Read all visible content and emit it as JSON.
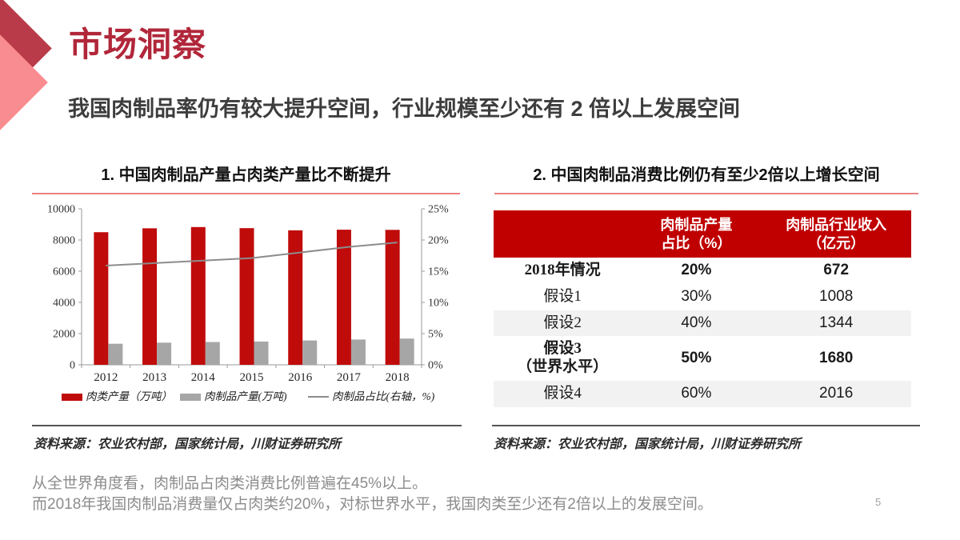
{
  "slide": {
    "title": "市场洞察",
    "subtitle": "我国肉制品率仍有较大提升空间，行业规模至少还有 2 倍以上发展空间",
    "page_number": "5"
  },
  "colors": {
    "accent_dark_red": "#b1273a",
    "bar_red": "#c00b0b",
    "bar_gray": "#a6a6a6",
    "line_gray": "#8c8c8c",
    "table_header_red": "#c00000",
    "shaded_row": "#f2f2f2",
    "rule_pink": "#ec8080"
  },
  "left_panel": {
    "heading": "1. 中国肉制品产量占肉类产量比不断提升",
    "source": "资料来源：农业农村部，国家统计局，川财证券研究所"
  },
  "right_panel": {
    "heading": "2. 中国肉制品消费比例仍有至少2倍以上增长空间",
    "source": "资料来源：农业农村部，国家统计局，川财证券研究所"
  },
  "chart_data": {
    "type": "bar+line combo",
    "categories": [
      "2012",
      "2013",
      "2014",
      "2015",
      "2016",
      "2017",
      "2018"
    ],
    "series": [
      {
        "name": "肉类产量（万吨）",
        "type": "bar",
        "axis": "left",
        "color": "#c00b0b",
        "values": [
          8500,
          8750,
          8830,
          8760,
          8620,
          8660,
          8650
        ]
      },
      {
        "name": "肉制品产量(万吨)",
        "type": "bar",
        "axis": "left",
        "color": "#a6a6a6",
        "values": [
          1350,
          1420,
          1460,
          1490,
          1560,
          1620,
          1680
        ]
      },
      {
        "name": "肉制品占比(右轴，%)",
        "type": "line",
        "axis": "right",
        "color": "#8c8c8c",
        "values": [
          15.9,
          16.3,
          16.7,
          17.1,
          18.0,
          18.9,
          19.6
        ]
      }
    ],
    "left_axis": {
      "min": 0,
      "max": 10000,
      "step": 2000,
      "labels": [
        "0",
        "2000",
        "4000",
        "6000",
        "8000",
        "10000"
      ]
    },
    "right_axis": {
      "min": 0,
      "max": 25,
      "step": 5,
      "labels": [
        "0%",
        "5%",
        "10%",
        "15%",
        "20%",
        "25%"
      ]
    },
    "grid": false,
    "legend_position": "bottom"
  },
  "table": {
    "headers": [
      "",
      "肉制品产量\n占比（%）",
      "肉制品行业收入\n（亿元）"
    ],
    "rows": [
      {
        "label": "2018年情况",
        "share": "20%",
        "revenue": "672",
        "bold": true,
        "shaded": false
      },
      {
        "label": "假设1",
        "share": "30%",
        "revenue": "1008",
        "bold": false,
        "shaded": false
      },
      {
        "label": "假设2",
        "share": "40%",
        "revenue": "1344",
        "bold": false,
        "shaded": true
      },
      {
        "label": "假设3\n（世界水平）",
        "share": "50%",
        "revenue": "1680",
        "bold": true,
        "shaded": false
      },
      {
        "label": "假设4",
        "share": "60%",
        "revenue": "2016",
        "bold": false,
        "shaded": true
      }
    ]
  },
  "footer": {
    "lines": [
      "从全世界角度看，肉制品占肉类消费比例普遍在45%以上。",
      "而2018年我国肉制品消费量仅占肉类约20%，对标世界水平，我国肉类至少还有2倍以上的发展空间。"
    ]
  }
}
